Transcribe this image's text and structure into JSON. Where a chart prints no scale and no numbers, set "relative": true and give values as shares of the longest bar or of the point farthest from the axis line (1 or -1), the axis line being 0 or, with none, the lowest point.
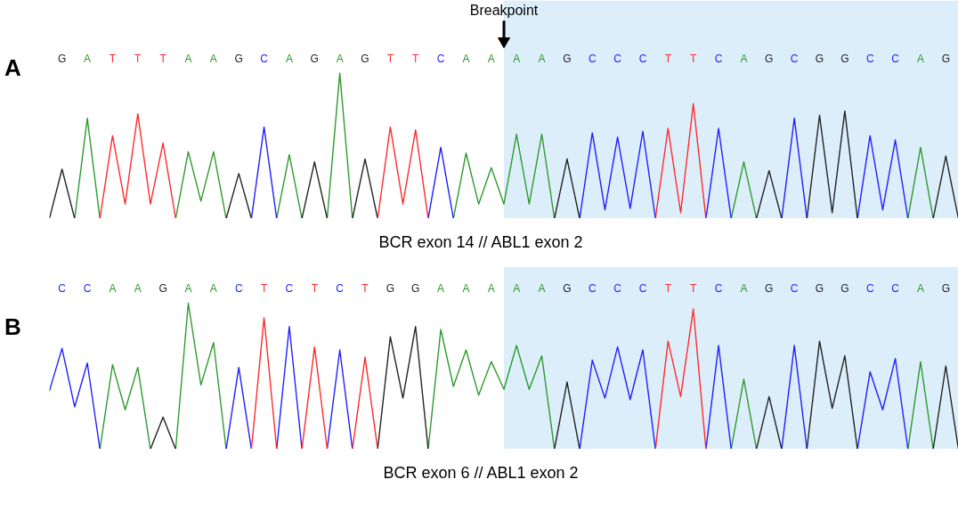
{
  "chart_data": [
    {
      "type": "line",
      "title": "A",
      "relative": true,
      "tick_labels": "x",
      "marker": "none",
      "line_style": "solid",
      "categories": [
        null,
        "G",
        null,
        "A",
        null,
        "T",
        null,
        "T",
        null,
        "T",
        null,
        "A",
        null,
        "A",
        null,
        "G",
        null,
        "C",
        null,
        "A",
        null,
        "G",
        null,
        "A",
        null,
        "G",
        null,
        "T",
        null,
        "T",
        null,
        "C",
        null,
        "A",
        null,
        "A",
        null,
        "A",
        null,
        "A",
        null,
        "G",
        null,
        "C",
        null,
        "C",
        null,
        "C",
        null,
        "T",
        null,
        "T",
        null,
        "C",
        null,
        "A",
        null,
        "G",
        null,
        "C",
        null,
        "G",
        null,
        "G",
        null,
        "C",
        null,
        "C",
        null,
        "A",
        null,
        "G",
        null
      ],
      "annotations": [
        "Breakpoint",
        "BCR exon 14     //     ABL1 exon 2"
      ],
      "series": [
        {
          "color": "#2e9a2e",
          "values": [
            null,
            null,
            0,
            0.69,
            0,
            null,
            null,
            null,
            null,
            null,
            0,
            0.46,
            0.12,
            0.46,
            0,
            null,
            null,
            null,
            0,
            0.44,
            0,
            null,
            0,
            1.0,
            0,
            null,
            null,
            null,
            null,
            null,
            null,
            null,
            0,
            0.45,
            0.1,
            0.35,
            0.1,
            0.58,
            0.1,
            0.58,
            0,
            null,
            null,
            null,
            null,
            null,
            null,
            null,
            null,
            null,
            null,
            null,
            null,
            null,
            0,
            0.39,
            0,
            null,
            null,
            null,
            null,
            null,
            null,
            null,
            null,
            null,
            null,
            null,
            0,
            0.49,
            0,
            null,
            null
          ]
        },
        {
          "color": "#1f1fff",
          "values": [
            null,
            null,
            null,
            null,
            null,
            null,
            null,
            null,
            null,
            null,
            null,
            null,
            null,
            null,
            null,
            null,
            0,
            0.63,
            0,
            null,
            null,
            null,
            null,
            null,
            null,
            null,
            null,
            null,
            null,
            null,
            0,
            0.49,
            0,
            null,
            null,
            null,
            null,
            null,
            null,
            null,
            null,
            null,
            0,
            0.59,
            0.06,
            0.56,
            0.07,
            0.6,
            0,
            null,
            null,
            null,
            0,
            0.62,
            0,
            null,
            null,
            null,
            0,
            0.69,
            0,
            null,
            null,
            null,
            0,
            0.57,
            0.06,
            0.54,
            0,
            null,
            null,
            null,
            null
          ]
        },
        {
          "color": "#222222",
          "values": [
            0,
            0.34,
            0,
            null,
            null,
            null,
            null,
            null,
            null,
            null,
            null,
            null,
            null,
            null,
            0,
            0.31,
            0,
            null,
            null,
            null,
            0,
            0.39,
            0,
            null,
            0,
            0.41,
            0,
            null,
            null,
            null,
            null,
            null,
            null,
            null,
            null,
            null,
            null,
            null,
            null,
            null,
            0,
            0.41,
            0,
            null,
            null,
            null,
            null,
            null,
            null,
            null,
            null,
            null,
            null,
            null,
            null,
            null,
            0,
            0.33,
            0,
            null,
            0,
            0.71,
            0.04,
            0.74,
            0,
            null,
            null,
            null,
            null,
            null,
            0,
            0.43,
            0
          ]
        },
        {
          "color": "#ff2a2a",
          "values": [
            null,
            null,
            null,
            null,
            0,
            0.57,
            0.1,
            0.72,
            0.1,
            0.52,
            0,
            null,
            null,
            null,
            null,
            null,
            null,
            null,
            null,
            null,
            null,
            null,
            null,
            null,
            null,
            null,
            0,
            0.63,
            0.1,
            0.61,
            0,
            null,
            null,
            null,
            null,
            null,
            null,
            null,
            null,
            null,
            null,
            null,
            null,
            null,
            null,
            null,
            null,
            null,
            0,
            0.62,
            0.04,
            0.79,
            0,
            null,
            null,
            null,
            null,
            null,
            null,
            null,
            null,
            null,
            null,
            null,
            null,
            null,
            null,
            null,
            null,
            null,
            null,
            null,
            null
          ]
        }
      ]
    },
    {
      "type": "line",
      "title": "B",
      "relative": true,
      "tick_labels": "x",
      "marker": "none",
      "line_style": "solid",
      "categories": [
        null,
        "C",
        null,
        "C",
        null,
        "A",
        null,
        "A",
        null,
        "G",
        null,
        "A",
        null,
        "A",
        null,
        "C",
        null,
        "T",
        null,
        "C",
        null,
        "T",
        null,
        "C",
        null,
        "T",
        null,
        "G",
        null,
        "G",
        null,
        "A",
        null,
        "A",
        null,
        "A",
        null,
        "A",
        null,
        "A",
        null,
        "G",
        null,
        "C",
        null,
        "C",
        null,
        "C",
        null,
        "T",
        null,
        "T",
        null,
        "C",
        null,
        "A",
        null,
        "G",
        null,
        "C",
        null,
        "G",
        null,
        "G",
        null,
        "C",
        null,
        "C",
        null,
        "A",
        null,
        "G",
        null
      ],
      "annotations": [
        "BCR exon 6     //     ABL1 exon 2"
      ],
      "series": [
        {
          "color": "#2e9a2e",
          "values": [
            null,
            null,
            null,
            null,
            0,
            0.58,
            0.27,
            0.56,
            0,
            null,
            0,
            1.0,
            0.44,
            0.73,
            0,
            null,
            null,
            null,
            null,
            null,
            null,
            null,
            null,
            null,
            null,
            null,
            null,
            null,
            null,
            null,
            0,
            0.82,
            0.43,
            0.68,
            0.37,
            0.6,
            0.41,
            0.71,
            0.41,
            0.64,
            0,
            null,
            null,
            null,
            null,
            null,
            null,
            null,
            null,
            null,
            null,
            null,
            null,
            null,
            0,
            0.48,
            0,
            null,
            null,
            null,
            null,
            null,
            null,
            null,
            null,
            null,
            null,
            null,
            0,
            0.6,
            0,
            null,
            null
          ]
        },
        {
          "color": "#1f1fff",
          "values": [
            0.4,
            0.69,
            0.29,
            0.59,
            0,
            null,
            null,
            null,
            null,
            null,
            null,
            null,
            null,
            null,
            0,
            0.56,
            0,
            null,
            0,
            0.84,
            0,
            null,
            0,
            0.68,
            0,
            null,
            null,
            null,
            null,
            null,
            null,
            null,
            null,
            null,
            null,
            null,
            null,
            null,
            null,
            null,
            null,
            null,
            0,
            0.61,
            0.35,
            0.7,
            0.34,
            0.68,
            0,
            null,
            null,
            null,
            0,
            0.71,
            0,
            null,
            null,
            null,
            0,
            0.71,
            0,
            null,
            null,
            null,
            0,
            0.53,
            0.27,
            0.62,
            0,
            null,
            null,
            null,
            null
          ]
        },
        {
          "color": "#222222",
          "values": [
            null,
            null,
            null,
            null,
            null,
            null,
            null,
            null,
            0,
            0.22,
            0,
            null,
            null,
            null,
            null,
            null,
            null,
            null,
            null,
            null,
            null,
            null,
            null,
            null,
            null,
            null,
            0,
            0.77,
            0.35,
            0.84,
            0,
            null,
            null,
            null,
            null,
            null,
            null,
            null,
            null,
            null,
            0,
            0.46,
            0,
            null,
            null,
            null,
            null,
            null,
            null,
            null,
            null,
            null,
            null,
            null,
            null,
            null,
            0,
            0.36,
            0,
            null,
            0,
            0.74,
            0.28,
            0.64,
            0,
            null,
            null,
            null,
            null,
            null,
            0,
            0.57,
            0
          ]
        },
        {
          "color": "#ff2a2a",
          "values": [
            null,
            null,
            null,
            null,
            null,
            null,
            null,
            null,
            null,
            null,
            null,
            null,
            null,
            null,
            null,
            null,
            0,
            0.9,
            0,
            null,
            0,
            0.7,
            0,
            null,
            0,
            0.63,
            0,
            null,
            null,
            null,
            null,
            null,
            null,
            null,
            null,
            null,
            null,
            null,
            null,
            null,
            null,
            null,
            null,
            null,
            null,
            null,
            null,
            null,
            0,
            0.74,
            0.36,
            0.96,
            0,
            null,
            null,
            null,
            null,
            null,
            null,
            null,
            null,
            null,
            null,
            null,
            null,
            null,
            null,
            null,
            null,
            null,
            null,
            null,
            null
          ]
        }
      ]
    }
  ]
}
